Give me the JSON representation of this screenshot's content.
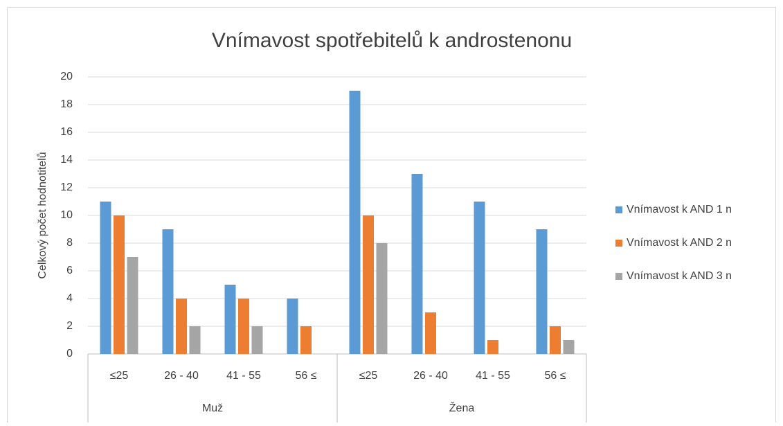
{
  "chart_data": {
    "type": "bar",
    "title": "Vnímavost spotřebitelů k androstenonu",
    "y_label": "Celkový počet hodnotitelů",
    "categories": [
      "≤25",
      "26 - 40",
      "41 - 55",
      "56 ≤",
      "≤25",
      "26 - 40",
      "41 - 55",
      "56 ≤"
    ],
    "groups": [
      "Muž",
      "Žena"
    ],
    "series": [
      {
        "name": "Vnímavost k AND 1 n",
        "color": "#5b9bd5",
        "values": [
          11,
          9,
          5,
          4,
          19,
          13,
          11,
          9
        ]
      },
      {
        "name": "Vnímavost k AND 2 n",
        "color": "#ed7d31",
        "values": [
          10,
          4,
          4,
          2,
          10,
          3,
          1,
          2
        ]
      },
      {
        "name": "Vnímavost k AND 3 n",
        "color": "#a5a5a5",
        "values": [
          7,
          2,
          2,
          0,
          8,
          0,
          0,
          1
        ]
      }
    ],
    "ylim": [
      0,
      20
    ],
    "yticks": [
      0,
      2,
      4,
      6,
      8,
      10,
      12,
      14,
      16,
      18,
      20
    ],
    "grid": true,
    "legend": "right"
  }
}
